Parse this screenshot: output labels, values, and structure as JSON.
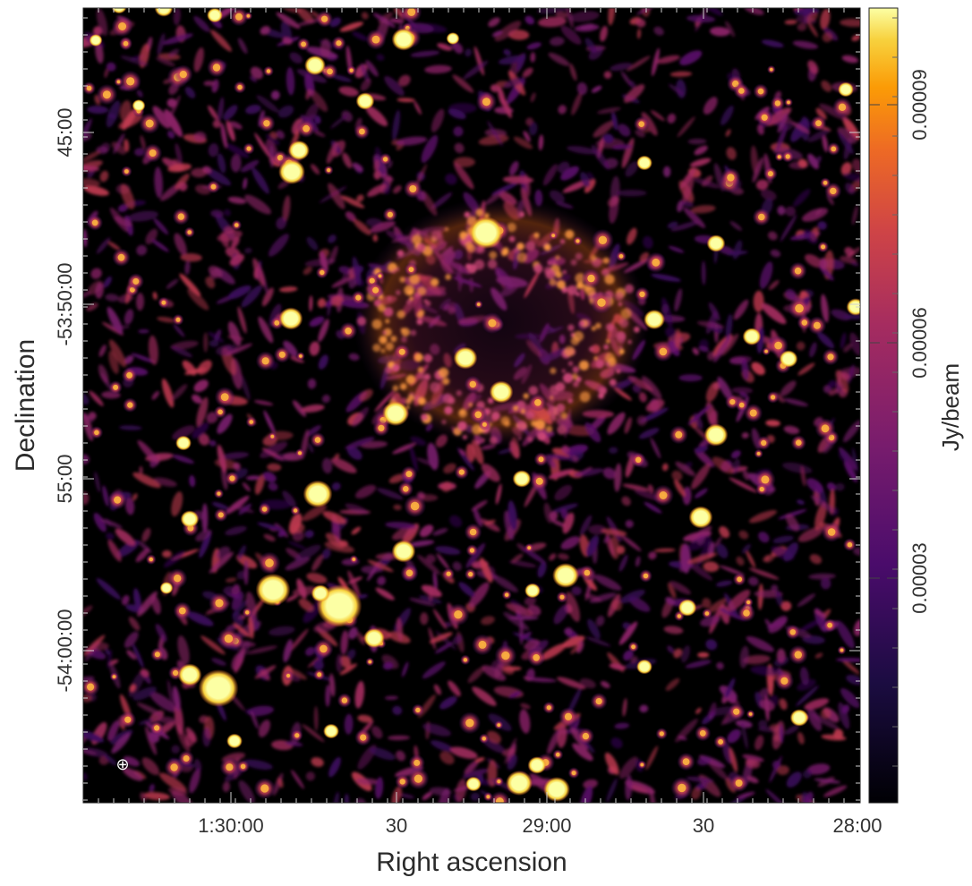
{
  "image": {
    "description_type": "radio continuum map",
    "colormap": "inferno",
    "background_color": "#000000",
    "bright_color": "#fcffa4"
  },
  "axes": {
    "xlabel": "Right ascension",
    "ylabel": "Declination",
    "x_ticks": [
      "1:30:00",
      "30",
      "29:00",
      "30",
      "28:00"
    ],
    "y_ticks": [
      "45:00",
      "-53:50:00",
      "55:00",
      "-54:00:00"
    ]
  },
  "colorbar": {
    "label": "Jy/beam",
    "ticks": [
      "0.00003",
      "0.00006",
      "0.00009"
    ],
    "range": [
      0,
      0.0001
    ]
  },
  "beam_marker": "⊕"
}
